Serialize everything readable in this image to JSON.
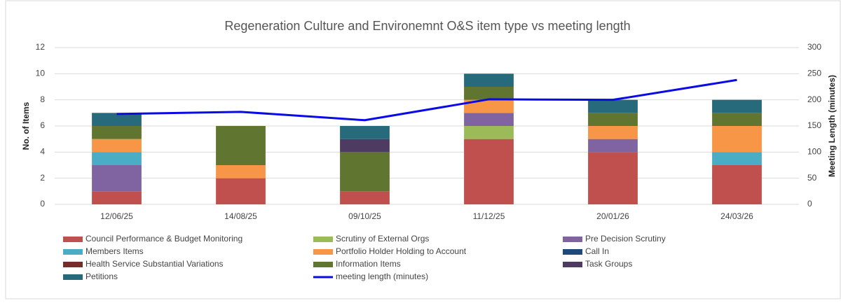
{
  "chart_data": {
    "type": "bar",
    "stacked": true,
    "title": "Regeneration Culture and Environemnt O&S item type vs meeting length",
    "y_label": "No. of Items",
    "y2_label": "Meeting Length (minutes)",
    "categories": [
      "12/06/25",
      "14/08/25",
      "09/10/25",
      "11/12/25",
      "20/01/26",
      "24/03/26"
    ],
    "ylim": [
      0,
      12
    ],
    "yticks": [
      0,
      2,
      4,
      6,
      8,
      10,
      12
    ],
    "y2lim": [
      0,
      300
    ],
    "y2ticks": [
      0,
      50,
      100,
      150,
      200,
      250,
      300
    ],
    "grid": true,
    "legend": "bottom",
    "series": [
      {
        "name": "Council Performance & Budget Monitoring",
        "color": "#c0504d",
        "values": [
          1,
          2,
          1,
          5,
          4,
          3
        ]
      },
      {
        "name": "Scrutiny of External Orgs",
        "color": "#9bbb59",
        "values": [
          0,
          0,
          0,
          1,
          0,
          0
        ]
      },
      {
        "name": "Pre Decision Scrutiny",
        "color": "#8064a2",
        "values": [
          2,
          0,
          0,
          1,
          1,
          0
        ]
      },
      {
        "name": "Members Items",
        "color": "#4bacc6",
        "values": [
          1,
          0,
          0,
          0,
          0,
          1
        ]
      },
      {
        "name": "Portfolio Holder Holding to Account",
        "color": "#f79646",
        "values": [
          1,
          1,
          0,
          1,
          1,
          2
        ]
      },
      {
        "name": "Call In",
        "color": "#1f497d",
        "values": [
          0,
          0,
          0,
          0,
          0,
          0
        ]
      },
      {
        "name": "Health Service Substantial Variations",
        "color": "#772c2a",
        "values": [
          0,
          0,
          0,
          0,
          0,
          0
        ]
      },
      {
        "name": "Information Items",
        "color": "#5f7530",
        "values": [
          1,
          3,
          3,
          1,
          1,
          1
        ]
      },
      {
        "name": "Task Groups",
        "color": "#4d3b62",
        "values": [
          0,
          0,
          1,
          0,
          0,
          0
        ]
      },
      {
        "name": "Petitions",
        "color": "#276a7c",
        "values": [
          1,
          0,
          1,
          1,
          1,
          1
        ]
      },
      {
        "name": "meeting length (minutes)",
        "color": "#0a0ae6",
        "type": "line",
        "axis": "y2",
        "values": [
          173,
          177,
          161,
          201,
          200,
          238
        ]
      }
    ]
  }
}
